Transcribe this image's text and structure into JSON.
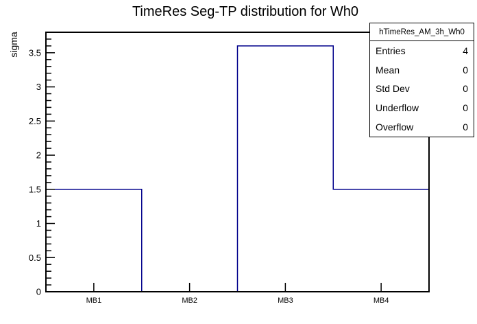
{
  "chart_data": {
    "type": "bar",
    "subtype": "root-histogram-outline",
    "title": "TimeRes Seg-TP distribution for Wh0",
    "xlabel": "",
    "ylabel": "sigma",
    "categories": [
      "MB1",
      "MB2",
      "MB3",
      "MB4"
    ],
    "values": [
      1.5,
      0,
      3.6,
      1.5
    ],
    "ylim": [
      0,
      3.8
    ],
    "ytick_step": 0.5,
    "yminor_step": 0.1,
    "ytick_labels": [
      "0",
      "0.5",
      "1",
      "1.5",
      "2",
      "2.5",
      "3",
      "3.5"
    ],
    "grid": false,
    "legend_position": "none",
    "line_color": "#00008b",
    "frame_color": "#000000",
    "background_color": "#ffffff"
  },
  "stats_box": {
    "title": "hTimeRes_AM_3h_Wh0",
    "rows": [
      {
        "label": "Entries",
        "value": "4"
      },
      {
        "label": "Mean",
        "value": "0"
      },
      {
        "label": "Std Dev",
        "value": "0"
      },
      {
        "label": "Underflow",
        "value": "0"
      },
      {
        "label": "Overflow",
        "value": "0"
      }
    ]
  }
}
